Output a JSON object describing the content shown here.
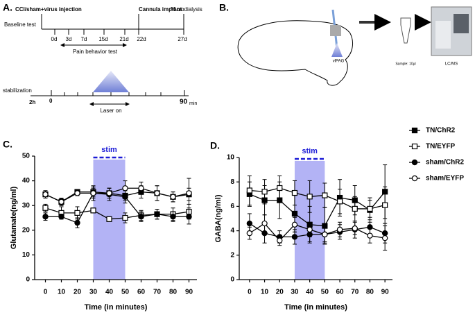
{
  "panels": {
    "a": {
      "label": "A.",
      "injection": "CCI/sham+virus injection",
      "baseline": "Baseline test",
      "days": [
        "0d",
        "3d",
        "7d",
        "15d",
        "21d",
        "22d",
        "27d"
      ],
      "cannula": "Cannula implant",
      "microdialysis": "Microdialysis",
      "pain_test": "Pain behavior test",
      "stabilization": "stabilization",
      "stab_time": "2h",
      "start": "0",
      "laser": "Laser on",
      "end": "90",
      "unit": "min"
    },
    "b": {
      "label": "B.",
      "region": "vlPAG",
      "sample": "Sample: 10μl",
      "instrument": "LC/MS"
    }
  },
  "chart_data": [
    {
      "type": "line",
      "panel_label": "C.",
      "y_label": "Glutamate(ng/ml)",
      "x_label": "Time (in minutes)",
      "x": [
        0,
        10,
        20,
        30,
        40,
        50,
        60,
        70,
        80,
        90
      ],
      "xlim": [
        -5,
        95
      ],
      "xticks": [
        0,
        10,
        20,
        30,
        40,
        50,
        60,
        70,
        80,
        90
      ],
      "ylim": [
        0,
        50
      ],
      "yticks": [
        0,
        10,
        20,
        30,
        40,
        50
      ],
      "stim": {
        "label": "stim",
        "start": 30,
        "end": 50,
        "color": "#b3b3f5",
        "text_color": "#1a1ad6"
      },
      "legend": "right",
      "series": [
        {
          "name": "TN/ChR2",
          "color": "#000000",
          "marker": "square",
          "filled": true,
          "values": [
            34.5,
            31.5,
            35.5,
            35.5,
            35,
            34,
            35.5,
            35,
            33.5,
            34.5
          ],
          "errors": [
            1.5,
            1.2,
            1,
            2,
            2,
            2,
            2.5,
            3,
            2,
            2.5
          ]
        },
        {
          "name": "TN/EYFP",
          "color": "#000000",
          "marker": "square",
          "filled": false,
          "values": [
            29,
            27,
            27,
            28,
            24.5,
            25,
            26,
            26.5,
            26.5,
            27.5
          ],
          "errors": [
            1.5,
            2.5,
            2.5,
            1,
            1,
            2,
            2,
            2,
            2.5,
            3
          ]
        },
        {
          "name": "sham/ChR2",
          "color": "#000000",
          "marker": "circle",
          "filled": true,
          "values": [
            25.5,
            25.5,
            23,
            35,
            34.5,
            33.5,
            25.5,
            26.5,
            25.5,
            25.5
          ],
          "errors": [
            1.5,
            1,
            2,
            3,
            2.5,
            2.5,
            2,
            2,
            2,
            3
          ]
        },
        {
          "name": "sham/EYFP",
          "color": "#000000",
          "marker": "circle",
          "filled": false,
          "values": [
            34.5,
            31.5,
            35,
            35,
            35,
            37,
            37,
            35,
            33.5,
            35
          ],
          "errors": [
            1.5,
            1.5,
            1,
            2,
            2,
            3,
            2.5,
            3,
            2,
            6
          ]
        }
      ]
    },
    {
      "type": "line",
      "panel_label": "D.",
      "y_label": "GABA(ng/ml)",
      "x_label": "Time (in minutes)",
      "x": [
        0,
        10,
        20,
        30,
        40,
        50,
        60,
        70,
        80,
        90
      ],
      "xlim": [
        -5,
        95
      ],
      "xticks": [
        0,
        10,
        20,
        30,
        40,
        50,
        60,
        70,
        80,
        90
      ],
      "ylim": [
        0,
        10
      ],
      "yticks": [
        0,
        2,
        4,
        6,
        8,
        10
      ],
      "stim": {
        "label": "stim",
        "start": 30,
        "end": 50,
        "color": "#b3b3f5",
        "text_color": "#1a1ad6"
      },
      "series": [
        {
          "color": "#000000",
          "marker": "square",
          "filled": true,
          "values": [
            7,
            6.5,
            6.5,
            5.4,
            4.5,
            4.4,
            6.7,
            6.5,
            5.7,
            7.2
          ],
          "errors": [
            1,
            1.2,
            1.5,
            1.5,
            1.5,
            1.5,
            1.5,
            1.2,
            1,
            2.2
          ]
        },
        {
          "color": "#000000",
          "marker": "square",
          "filled": false,
          "values": [
            7.3,
            7.2,
            7.5,
            7.1,
            6.8,
            6.9,
            6.4,
            5.8,
            5.8,
            6.1
          ],
          "errors": [
            1.2,
            1,
            1,
            1,
            1.3,
            1,
            1,
            1,
            0.7,
            1.5
          ]
        },
        {
          "color": "#000000",
          "marker": "circle",
          "filled": true,
          "values": [
            4.6,
            3.8,
            3.5,
            3.5,
            3.7,
            3.7,
            3.9,
            4.1,
            4.3,
            3.8
          ],
          "errors": [
            0.8,
            0.8,
            0.5,
            0.6,
            0.6,
            0.7,
            0.6,
            0.7,
            0.6,
            0.8
          ]
        },
        {
          "color": "#000000",
          "marker": "circle",
          "filled": false,
          "values": [
            3.8,
            4.6,
            3.2,
            4.5,
            4.1,
            3.7,
            4.1,
            4.2,
            3.6,
            3.4
          ],
          "errors": [
            0.5,
            0.7,
            0.4,
            0.6,
            0.6,
            0.6,
            0.6,
            0.5,
            0.6,
            1
          ]
        }
      ]
    }
  ]
}
